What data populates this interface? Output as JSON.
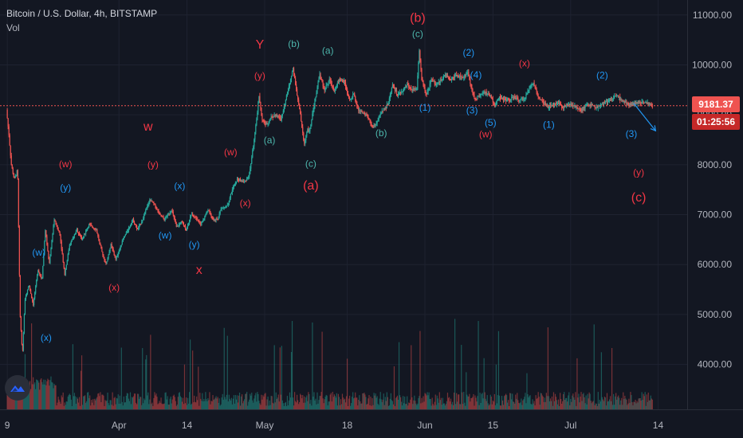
{
  "header": {
    "symbol": "Bitcoin / U.S. Dollar, 4h, BITSTAMP",
    "volume_label": "Vol"
  },
  "price_scale": {
    "current_price": "9181.37",
    "countdown": "01:25:56"
  },
  "colors": {
    "background": "#131722",
    "grid": "#1e2230",
    "text": "#b2b5be",
    "up": "#26a69a",
    "down": "#ef5350",
    "price_line": "#ef5350",
    "wave_red": "#f23645",
    "wave_blue": "#2196f3",
    "wave_green": "#4db6ac"
  },
  "icons": {
    "logo": "tradingview-cloud-icon"
  },
  "chart_data": {
    "type": "candlestick",
    "title": "Bitcoin / U.S. Dollar, 4h, BITSTAMP",
    "ylim": [
      3100,
      11300
    ],
    "yticks": [
      "11000.00",
      "10000.00",
      "9000.00",
      "8000.00",
      "7000.00",
      "6000.00",
      "5000.00",
      "4000.00"
    ],
    "ytick_values": [
      11000,
      10000,
      9000,
      8000,
      7000,
      6000,
      5000,
      4000
    ],
    "xticks": [
      "9",
      "Apr",
      "14",
      "May",
      "18",
      "Jun",
      "15",
      "Jul",
      "14"
    ],
    "xtick_days": [
      0,
      23,
      37,
      53,
      70,
      86,
      100,
      116,
      134
    ],
    "day_range": [
      -1.5,
      140
    ],
    "last_price": 9181.37,
    "price_path": [
      [
        0,
        9100
      ],
      [
        0.5,
        8600
      ],
      [
        1,
        8000
      ],
      [
        1.6,
        7700
      ],
      [
        2.3,
        7900
      ],
      [
        2.8,
        5000
      ],
      [
        3.3,
        4200
      ],
      [
        3.8,
        5300
      ],
      [
        4.6,
        5600
      ],
      [
        5.5,
        5200
      ],
      [
        6.5,
        5900
      ],
      [
        7.3,
        5700
      ],
      [
        8,
        6700
      ],
      [
        8.8,
        6000
      ],
      [
        9.8,
        6900
      ],
      [
        11,
        6600
      ],
      [
        12,
        5800
      ],
      [
        13,
        6400
      ],
      [
        14.5,
        6700
      ],
      [
        15.5,
        6500
      ],
      [
        17,
        6800
      ],
      [
        18.5,
        6700
      ],
      [
        19.5,
        6300
      ],
      [
        20.5,
        6000
      ],
      [
        21.5,
        6400
      ],
      [
        22.5,
        6100
      ],
      [
        24,
        6500
      ],
      [
        25,
        6700
      ],
      [
        26,
        6900
      ],
      [
        27,
        6700
      ],
      [
        28,
        6900
      ],
      [
        29.5,
        7300
      ],
      [
        30.5,
        7200
      ],
      [
        31.5,
        7000
      ],
      [
        32.5,
        6900
      ],
      [
        34,
        7100
      ],
      [
        35,
        6750
      ],
      [
        36,
        6850
      ],
      [
        37,
        6700
      ],
      [
        38,
        7000
      ],
      [
        39,
        6950
      ],
      [
        40,
        6800
      ],
      [
        41.5,
        7100
      ],
      [
        42.5,
        6900
      ],
      [
        43.5,
        6900
      ],
      [
        44,
        7100
      ],
      [
        45.5,
        7200
      ],
      [
        46.5,
        7500
      ],
      [
        47.5,
        7700
      ],
      [
        49,
        7650
      ],
      [
        50,
        7800
      ],
      [
        51,
        8500
      ],
      [
        51.5,
        8900
      ],
      [
        52,
        9400
      ],
      [
        52.6,
        8900
      ],
      [
        53.5,
        8800
      ],
      [
        54.5,
        8950
      ],
      [
        55.5,
        9000
      ],
      [
        56.5,
        8900
      ],
      [
        57.5,
        9300
      ],
      [
        58.5,
        9700
      ],
      [
        59,
        9950
      ],
      [
        59.5,
        9600
      ],
      [
        60.5,
        9000
      ],
      [
        61.3,
        8400
      ],
      [
        61.9,
        8700
      ],
      [
        62.5,
        8700
      ],
      [
        63.5,
        9300
      ],
      [
        64.5,
        9800
      ],
      [
        65.5,
        9500
      ],
      [
        66.5,
        9700
      ],
      [
        67.5,
        9500
      ],
      [
        68.5,
        9700
      ],
      [
        69.5,
        9700
      ],
      [
        70.5,
        9300
      ],
      [
        71.5,
        9400
      ],
      [
        72.5,
        9100
      ],
      [
        74,
        9000
      ],
      [
        75.5,
        8750
      ],
      [
        76.5,
        8900
      ],
      [
        77.5,
        9100
      ],
      [
        78.5,
        9200
      ],
      [
        79.5,
        9600
      ],
      [
        80.5,
        9400
      ],
      [
        81.5,
        9450
      ],
      [
        82.5,
        9600
      ],
      [
        83.5,
        9500
      ],
      [
        84.5,
        9500
      ],
      [
        85,
        10300
      ],
      [
        85.5,
        9700
      ],
      [
        86.5,
        9400
      ],
      [
        87.5,
        9700
      ],
      [
        88.5,
        9600
      ],
      [
        89.5,
        9700
      ],
      [
        90.5,
        9800
      ],
      [
        91.5,
        9700
      ],
      [
        92.5,
        9800
      ],
      [
        94,
        9750
      ],
      [
        95,
        9850
      ],
      [
        95.5,
        9600
      ],
      [
        96.5,
        9300
      ],
      [
        97.5,
        9400
      ],
      [
        98.5,
        9450
      ],
      [
        99.5,
        9400
      ],
      [
        100.5,
        9200
      ],
      [
        101.5,
        9350
      ],
      [
        102.5,
        9300
      ],
      [
        103.5,
        9300
      ],
      [
        104.5,
        9350
      ],
      [
        105.5,
        9300
      ],
      [
        106.5,
        9300
      ],
      [
        107.5,
        9500
      ],
      [
        108.5,
        9650
      ],
      [
        109.5,
        9350
      ],
      [
        110.5,
        9250
      ],
      [
        111.5,
        9150
      ],
      [
        112.5,
        9200
      ],
      [
        113.5,
        9250
      ],
      [
        114.5,
        9150
      ],
      [
        115.5,
        9200
      ],
      [
        116.5,
        9200
      ],
      [
        117.5,
        9150
      ],
      [
        118.5,
        9100
      ],
      [
        119.5,
        9200
      ],
      [
        120.5,
        9200
      ],
      [
        121.5,
        9150
      ],
      [
        122.5,
        9200
      ],
      [
        123.5,
        9250
      ],
      [
        124.5,
        9300
      ],
      [
        125.5,
        9400
      ],
      [
        126.5,
        9300
      ],
      [
        127.5,
        9250
      ],
      [
        128.5,
        9200
      ],
      [
        129.5,
        9250
      ],
      [
        130.5,
        9230
      ],
      [
        131.5,
        9250
      ],
      [
        133,
        9181
      ]
    ],
    "projection": [
      [
        129,
        9230
      ],
      [
        133.5,
        8680
      ]
    ],
    "annotations": [
      {
        "text": "(b)",
        "day": 84.5,
        "price": 10860,
        "color": "red",
        "size": "large"
      },
      {
        "text": "(c)",
        "day": 84.5,
        "price": 10560,
        "color": "green",
        "size": "small"
      },
      {
        "text": "Y",
        "day": 52,
        "price": 10330,
        "color": "red",
        "size": "large"
      },
      {
        "text": "(b)",
        "day": 59,
        "price": 10360,
        "color": "green",
        "size": "small"
      },
      {
        "text": "(a)",
        "day": 66,
        "price": 10220,
        "color": "green",
        "size": "small"
      },
      {
        "text": "(2)",
        "day": 95,
        "price": 10180,
        "color": "blue",
        "size": "small"
      },
      {
        "text": "(x)",
        "day": 106.5,
        "price": 9970,
        "color": "red",
        "size": "small"
      },
      {
        "text": "(y)",
        "day": 52,
        "price": 9720,
        "color": "red",
        "size": "small"
      },
      {
        "text": "(4)",
        "day": 96.5,
        "price": 9740,
        "color": "blue",
        "size": "small"
      },
      {
        "text": "(2)",
        "day": 122.5,
        "price": 9730,
        "color": "blue",
        "size": "small"
      },
      {
        "text": "(1)",
        "day": 86,
        "price": 9080,
        "color": "blue",
        "size": "small"
      },
      {
        "text": "(3)",
        "day": 95.7,
        "price": 9030,
        "color": "blue",
        "size": "small"
      },
      {
        "text": "(5)",
        "day": 99.5,
        "price": 8780,
        "color": "blue",
        "size": "small"
      },
      {
        "text": "(1)",
        "day": 111.5,
        "price": 8740,
        "color": "blue",
        "size": "small"
      },
      {
        "text": "w",
        "day": 29,
        "price": 8680,
        "color": "red",
        "size": "large"
      },
      {
        "text": "(b)",
        "day": 77,
        "price": 8570,
        "color": "green",
        "size": "small"
      },
      {
        "text": "(w)",
        "day": 98.5,
        "price": 8550,
        "color": "red",
        "size": "small"
      },
      {
        "text": "(3)",
        "day": 128.5,
        "price": 8560,
        "color": "blue",
        "size": "small"
      },
      {
        "text": "(a)",
        "day": 54,
        "price": 8430,
        "color": "green",
        "size": "small"
      },
      {
        "text": "(w)",
        "day": 46,
        "price": 8190,
        "color": "red",
        "size": "small"
      },
      {
        "text": "(w)",
        "day": 12,
        "price": 7950,
        "color": "red",
        "size": "small"
      },
      {
        "text": "(y)",
        "day": 30,
        "price": 7940,
        "color": "red",
        "size": "small"
      },
      {
        "text": "(c)",
        "day": 62.5,
        "price": 7960,
        "color": "green",
        "size": "small"
      },
      {
        "text": "(y)",
        "day": 130,
        "price": 7780,
        "color": "red",
        "size": "small"
      },
      {
        "text": "(x)",
        "day": 35.5,
        "price": 7510,
        "color": "blue",
        "size": "small"
      },
      {
        "text": "(y)",
        "day": 12,
        "price": 7480,
        "color": "blue",
        "size": "small"
      },
      {
        "text": "(a)",
        "day": 62.5,
        "price": 7500,
        "color": "red",
        "size": "large"
      },
      {
        "text": "(x)",
        "day": 49,
        "price": 7170,
        "color": "red",
        "size": "small"
      },
      {
        "text": "(c)",
        "day": 130,
        "price": 7260,
        "color": "red",
        "size": "large"
      },
      {
        "text": "(w)",
        "day": 32.5,
        "price": 6520,
        "color": "blue",
        "size": "small"
      },
      {
        "text": "(y)",
        "day": 38.5,
        "price": 6340,
        "color": "blue",
        "size": "small"
      },
      {
        "text": "(w)",
        "day": 6.5,
        "price": 6180,
        "color": "blue",
        "size": "small"
      },
      {
        "text": "x",
        "day": 39.5,
        "price": 5810,
        "color": "red",
        "size": "large"
      },
      {
        "text": "(x)",
        "day": 22,
        "price": 5480,
        "color": "red",
        "size": "small"
      },
      {
        "text": "(x)",
        "day": 8,
        "price": 4470,
        "color": "blue",
        "size": "small"
      }
    ]
  }
}
